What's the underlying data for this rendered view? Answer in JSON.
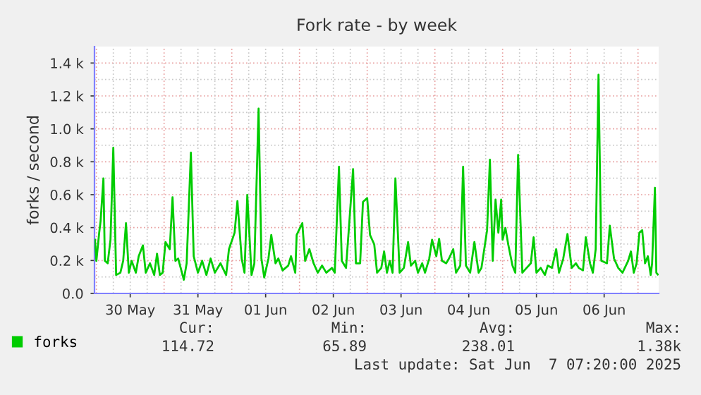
{
  "chart_data": {
    "type": "line",
    "title": "Fork rate - by week",
    "ylabel": "forks / second",
    "x": [
      "2025-05-29T23:30",
      "2025-05-30T00:00",
      "2025-05-30T01:00",
      "2025-05-30T01:30",
      "2025-05-30T02:30",
      "2025-05-30T03:00",
      "2025-05-30T04:00",
      "2025-05-30T05:00",
      "2025-05-30T06:00",
      "2025-05-30T07:00",
      "2025-05-30T08:30",
      "2025-05-30T09:30",
      "2025-05-30T10:30",
      "2025-05-30T11:30",
      "2025-05-30T12:30",
      "2025-05-30T14:00",
      "2025-05-30T15:00",
      "2025-05-30T16:30",
      "2025-05-30T17:30",
      "2025-05-30T19:00",
      "2025-05-30T20:30",
      "2025-05-30T21:30",
      "2025-05-30T22:30",
      "2025-05-30T23:30",
      "2025-05-31T00:30",
      "2025-05-31T02:00",
      "2025-05-31T03:00",
      "2025-05-31T04:00",
      "2025-05-31T05:00",
      "2025-05-31T07:00",
      "2025-05-31T08:00",
      "2025-05-31T09:30",
      "2025-05-31T10:30",
      "2025-05-31T12:00",
      "2025-05-31T13:30",
      "2025-05-31T15:00",
      "2025-05-31T16:30",
      "2025-05-31T18:00",
      "2025-05-31T20:00",
      "2025-05-31T22:00",
      "2025-05-31T23:00",
      "2025-06-01T01:00",
      "2025-06-01T02:00",
      "2025-06-01T03:30",
      "2025-06-01T04:30",
      "2025-06-01T05:30",
      "2025-06-01T07:00",
      "2025-06-01T08:00",
      "2025-06-01T09:30",
      "2025-06-01T10:30",
      "2025-06-01T11:30",
      "2025-06-01T13:00",
      "2025-06-01T14:00",
      "2025-06-01T15:30",
      "2025-06-01T16:30",
      "2025-06-01T18:00",
      "2025-06-01T20:00",
      "2025-06-01T21:00",
      "2025-06-01T22:30",
      "2025-06-01T23:00",
      "2025-06-02T01:00",
      "2025-06-02T02:00",
      "2025-06-02T03:30",
      "2025-06-02T05:00",
      "2025-06-02T06:30",
      "2025-06-02T08:00",
      "2025-06-02T09:30",
      "2025-06-02T11:30",
      "2025-06-02T12:30",
      "2025-06-02T14:00",
      "2025-06-02T15:00",
      "2025-06-02T16:30",
      "2025-06-02T18:00",
      "2025-06-02T19:00",
      "2025-06-02T20:00",
      "2025-06-02T21:30",
      "2025-06-02T22:30",
      "2025-06-03T00:00",
      "2025-06-03T01:00",
      "2025-06-03T02:30",
      "2025-06-03T03:30",
      "2025-06-03T05:00",
      "2025-06-03T06:00",
      "2025-06-03T07:00",
      "2025-06-03T08:00",
      "2025-06-03T09:00",
      "2025-06-03T10:00",
      "2025-06-03T11:30",
      "2025-06-03T13:00",
      "2025-06-03T14:30",
      "2025-06-03T15:30",
      "2025-06-03T17:00",
      "2025-06-03T18:00",
      "2025-06-03T19:30",
      "2025-06-03T20:30",
      "2025-06-03T22:00",
      "2025-06-03T23:00",
      "2025-06-04T00:30",
      "2025-06-04T01:30",
      "2025-06-04T02:30",
      "2025-06-04T04:00",
      "2025-06-04T05:00",
      "2025-06-04T06:30",
      "2025-06-04T07:30",
      "2025-06-04T09:00",
      "2025-06-04T10:00",
      "2025-06-04T11:00",
      "2025-06-04T12:30",
      "2025-06-04T14:00",
      "2025-06-04T15:30",
      "2025-06-04T16:30",
      "2025-06-04T18:30",
      "2025-06-04T19:30",
      "2025-06-04T20:30",
      "2025-06-04T21:30",
      "2025-06-04T22:30",
      "2025-06-04T23:30",
      "2025-06-05T00:00",
      "2025-06-05T01:00",
      "2025-06-05T02:00",
      "2025-06-05T03:30",
      "2025-06-05T04:30",
      "2025-06-05T05:30",
      "2025-06-05T07:00",
      "2025-06-05T08:30",
      "2025-06-05T10:00",
      "2025-06-05T11:00",
      "2025-06-05T12:00",
      "2025-06-05T13:30",
      "2025-06-05T15:00",
      "2025-06-05T16:00",
      "2025-06-05T17:30",
      "2025-06-05T19:00",
      "2025-06-05T20:00",
      "2025-06-05T21:30",
      "2025-06-05T23:00",
      "2025-06-06T00:30",
      "2025-06-06T02:00",
      "2025-06-06T03:00",
      "2025-06-06T04:30",
      "2025-06-06T05:30",
      "2025-06-06T07:00",
      "2025-06-06T08:00",
      "2025-06-06T09:00",
      "2025-06-06T10:00",
      "2025-06-06T11:00",
      "2025-06-06T13:00",
      "2025-06-06T14:00",
      "2025-06-06T15:30",
      "2025-06-06T17:00",
      "2025-06-06T18:30",
      "2025-06-06T20:30",
      "2025-06-06T21:30",
      "2025-06-06T22:30",
      "2025-06-06T23:30",
      "2025-06-07T00:30",
      "2025-06-07T01:30",
      "2025-06-07T02:30",
      "2025-06-07T03:30",
      "2025-06-07T04:30",
      "2025-06-07T05:00",
      "2025-06-07T06:00",
      "2025-06-07T06:30",
      "2025-06-07T07:00"
    ],
    "series": [
      {
        "name": "forks",
        "color": "#00cc00",
        "values": [
          326,
          198,
          369,
          441,
          699,
          198,
          183,
          326,
          885,
          112,
          126,
          198,
          427,
          126,
          198,
          126,
          226,
          292,
          126,
          183,
          112,
          241,
          112,
          126,
          312,
          269,
          584,
          198,
          212,
          83,
          183,
          856,
          226,
          126,
          198,
          112,
          212,
          126,
          183,
          112,
          269,
          369,
          561,
          212,
          126,
          598,
          112,
          183,
          1123,
          212,
          97,
          212,
          355,
          183,
          212,
          140,
          169,
          226,
          126,
          355,
          427,
          198,
          269,
          183,
          126,
          169,
          126,
          155,
          126,
          770,
          198,
          155,
          513,
          756,
          183,
          183,
          556,
          579,
          355,
          298,
          126,
          155,
          255,
          126,
          198,
          126,
          699,
          126,
          155,
          312,
          169,
          198,
          126,
          183,
          126,
          212,
          326,
          226,
          332,
          198,
          183,
          212,
          269,
          126,
          169,
          770,
          169,
          126,
          312,
          126,
          155,
          384,
          813,
          198,
          570,
          369,
          570,
          326,
          398,
          298,
          169,
          126,
          842,
          126,
          155,
          183,
          341,
          126,
          155,
          112,
          169,
          155,
          269,
          126,
          212,
          361,
          155,
          183,
          155,
          140,
          341,
          183,
          126,
          269,
          1329,
          198,
          183,
          412,
          212,
          155,
          126,
          198,
          255,
          126,
          183,
          369,
          384,
          183,
          226,
          112,
          183,
          642,
          126,
          115
        ]
      }
    ],
    "xlim": [
      "2025-05-29T23:20",
      "2025-06-07T07:20"
    ],
    "xticks": [
      {
        "value": "2025-05-30T12:00",
        "label": "30 May"
      },
      {
        "value": "2025-05-31T12:00",
        "label": "31 May"
      },
      {
        "value": "2025-06-01T12:00",
        "label": "01 Jun"
      },
      {
        "value": "2025-06-02T12:00",
        "label": "02 Jun"
      },
      {
        "value": "2025-06-03T12:00",
        "label": "03 Jun"
      },
      {
        "value": "2025-06-04T12:00",
        "label": "04 Jun"
      },
      {
        "value": "2025-06-05T12:00",
        "label": "05 Jun"
      },
      {
        "value": "2025-06-06T12:00",
        "label": "06 Jun"
      }
    ],
    "ylim": [
      0,
      1500
    ],
    "yticks": [
      {
        "value": 0,
        "label": "0.0"
      },
      {
        "value": 200,
        "label": "0.2 k"
      },
      {
        "value": 400,
        "label": "0.4 k"
      },
      {
        "value": 600,
        "label": "0.6 k"
      },
      {
        "value": 800,
        "label": "0.8 k"
      },
      {
        "value": 1000,
        "label": "1.0 k"
      },
      {
        "value": 1200,
        "label": "1.2 k"
      },
      {
        "value": 1400,
        "label": "1.4 k"
      }
    ],
    "grid": true,
    "legend": "bottom left",
    "marker": "none",
    "line_style": "solid",
    "annotations": [
      "Cur:",
      "Min:",
      "Avg:",
      "Max:",
      "114.72",
      "65.89",
      "238.01",
      "1.38k",
      "Last update: Sat Jun  7 07:20:00 2025"
    ]
  }
}
